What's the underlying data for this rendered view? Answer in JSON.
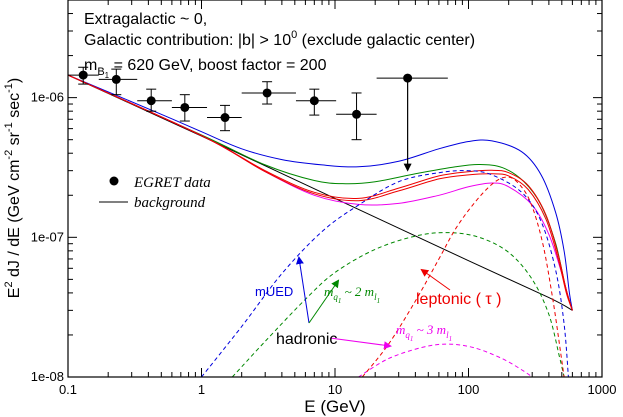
{
  "chart_data": {
    "type": "line",
    "x_scale": "log",
    "y_scale": "log",
    "xlim": [
      0.1,
      1000
    ],
    "ylim": [
      1e-08,
      5e-06
    ],
    "xlabel": "E (GeV)",
    "ylabel_parts": {
      "main": "E",
      "sup": "2",
      "rest": " dJ / dE (GeV cm",
      "sup2": "-2",
      "sr": " sr",
      "sup3": "-1",
      "sec": " sec",
      "sup4": "-1",
      "close": ")"
    },
    "x_ticks": [
      0.1,
      1,
      10,
      100,
      1000
    ],
    "x_tick_labels": [
      "0.1",
      "1",
      "10",
      "100",
      "1000"
    ],
    "y_ticks": [
      1e-08,
      1e-07,
      1e-06
    ],
    "y_tick_labels": [
      "1e-08",
      "1e-07",
      "1e-06"
    ],
    "title_lines": {
      "line1": "Extragalactic ~ 0,",
      "line2_pre": "Galactic contribution: |b| > 10",
      "line2_sup": "0",
      "line2_post": " (exclude galactic center)",
      "line3_m": "m",
      "line3_sub": "B",
      "line3_subsub": "1",
      "line3_post": " = 620 GeV, boost factor = 200"
    },
    "legend": {
      "data_label": "EGRET data",
      "line_label": "background",
      "position": "left"
    },
    "egret_data": [
      {
        "x": 0.13,
        "y": 1.45e-06,
        "xlo": 0.1,
        "xhi": 0.17,
        "ylo": 1.25e-06,
        "yhi": 1.65e-06
      },
      {
        "x": 0.23,
        "y": 1.35e-06,
        "xlo": 0.17,
        "xhi": 0.33,
        "ylo": 1.05e-06,
        "yhi": 1.6e-06
      },
      {
        "x": 0.42,
        "y": 9.5e-07,
        "xlo": 0.33,
        "xhi": 0.6,
        "ylo": 8e-07,
        "yhi": 1.15e-06
      },
      {
        "x": 0.75,
        "y": 8.5e-07,
        "xlo": 0.6,
        "xhi": 1.1,
        "ylo": 6.8e-07,
        "yhi": 1.05e-06
      },
      {
        "x": 1.5,
        "y": 7.2e-07,
        "xlo": 1.1,
        "xhi": 2.0,
        "ylo": 5.8e-07,
        "yhi": 8.8e-07
      },
      {
        "x": 3.1,
        "y": 1.08e-06,
        "xlo": 2.0,
        "xhi": 5.1,
        "ylo": 9e-07,
        "yhi": 1.3e-06
      },
      {
        "x": 7.0,
        "y": 9.5e-07,
        "xlo": 5.1,
        "xhi": 10.2,
        "ylo": 7.5e-07,
        "yhi": 1.15e-06
      },
      {
        "x": 14.5,
        "y": 7.6e-07,
        "xlo": 10.2,
        "xhi": 20.5,
        "ylo": 5e-07,
        "yhi": 1.08e-06
      },
      {
        "x": 35,
        "y": 1.38e-06,
        "xlo": 20.5,
        "xhi": 70,
        "ylo": 3.05e-07,
        "yhi": 1.38e-06,
        "upper_limit": true
      }
    ],
    "series": [
      {
        "name": "background",
        "color": "#000000",
        "dash": "solid",
        "points": [
          [
            0.1,
            1.45e-06
          ],
          [
            1,
            5.3e-07
          ],
          [
            10,
            1.9e-07
          ],
          [
            100,
            6.8e-08
          ],
          [
            400,
            3.7e-08
          ],
          [
            600,
            3e-08
          ]
        ]
      },
      {
        "name": "mUED total",
        "color": "#0000dd",
        "dash": "solid",
        "points": [
          [
            0.1,
            1.45e-06
          ],
          [
            0.5,
            7.6e-07
          ],
          [
            1,
            5.7e-07
          ],
          [
            2,
            4.3e-07
          ],
          [
            4,
            3.6e-07
          ],
          [
            8,
            3.3e-07
          ],
          [
            15,
            3.2e-07
          ],
          [
            30,
            3.5e-07
          ],
          [
            60,
            4.3e-07
          ],
          [
            100,
            4.85e-07
          ],
          [
            150,
            4.9e-07
          ],
          [
            250,
            4.1e-07
          ],
          [
            350,
            2.8e-07
          ],
          [
            450,
            1.5e-07
          ],
          [
            520,
            8e-08
          ],
          [
            570,
            4e-08
          ],
          [
            600,
            3e-08
          ]
        ]
      },
      {
        "name": "hadronic total (mq ~ 2 ml)",
        "color": "#008800",
        "dash": "solid",
        "points": [
          [
            0.1,
            1.45e-06
          ],
          [
            1,
            5.4e-07
          ],
          [
            3,
            3.3e-07
          ],
          [
            7,
            2.55e-07
          ],
          [
            12,
            2.42e-07
          ],
          [
            20,
            2.5e-07
          ],
          [
            40,
            2.85e-07
          ],
          [
            80,
            3.2e-07
          ],
          [
            120,
            3.32e-07
          ],
          [
            180,
            3.15e-07
          ],
          [
            260,
            2.5e-07
          ],
          [
            350,
            1.7e-07
          ],
          [
            450,
            9e-08
          ],
          [
            530,
            4.5e-08
          ],
          [
            600,
            3e-08
          ]
        ]
      },
      {
        "name": "hadronic total (mq ~ 3 ml)",
        "color": "#ee00ee",
        "dash": "solid",
        "points": [
          [
            0.1,
            1.45e-06
          ],
          [
            1,
            5.35e-07
          ],
          [
            3,
            2.95e-07
          ],
          [
            7,
            2e-07
          ],
          [
            15,
            1.72e-07
          ],
          [
            30,
            1.75e-07
          ],
          [
            60,
            2e-07
          ],
          [
            100,
            2.3e-07
          ],
          [
            150,
            2.45e-07
          ],
          [
            200,
            2.3e-07
          ],
          [
            300,
            1.7e-07
          ],
          [
            400,
            1.05e-07
          ],
          [
            500,
            5.5e-08
          ],
          [
            570,
            3.5e-08
          ],
          [
            600,
            3e-08
          ]
        ]
      },
      {
        "name": "leptonic total 1",
        "color": "#ee0000",
        "dash": "solid",
        "points": [
          [
            0.1,
            1.45e-06
          ],
          [
            1,
            5.35e-07
          ],
          [
            3,
            3e-07
          ],
          [
            7,
            2.1e-07
          ],
          [
            15,
            1.9e-07
          ],
          [
            30,
            2.25e-07
          ],
          [
            60,
            2.75e-07
          ],
          [
            100,
            2.95e-07
          ],
          [
            150,
            3.02e-07
          ],
          [
            200,
            2.9e-07
          ],
          [
            280,
            2.35e-07
          ],
          [
            380,
            1.45e-07
          ],
          [
            470,
            7.5e-08
          ],
          [
            540,
            4.2e-08
          ],
          [
            600,
            3e-08
          ]
        ]
      },
      {
        "name": "leptonic total 2",
        "color": "#ee0000",
        "dash": "solid",
        "points": [
          [
            0.1,
            1.45e-06
          ],
          [
            1,
            5.35e-07
          ],
          [
            3,
            2.95e-07
          ],
          [
            7,
            2.05e-07
          ],
          [
            15,
            1.83e-07
          ],
          [
            30,
            2.15e-07
          ],
          [
            60,
            2.62e-07
          ],
          [
            100,
            2.8e-07
          ],
          [
            150,
            2.85e-07
          ],
          [
            200,
            2.75e-07
          ],
          [
            280,
            2.2e-07
          ],
          [
            380,
            1.35e-07
          ],
          [
            470,
            7e-08
          ],
          [
            540,
            4e-08
          ],
          [
            600,
            3e-08
          ]
        ]
      },
      {
        "name": "mUED signal",
        "color": "#0000dd",
        "dash": "dashed",
        "points": [
          [
            1,
            1e-08
          ],
          [
            2,
            2.3e-08
          ],
          [
            4,
            5.5e-08
          ],
          [
            8,
            1.1e-07
          ],
          [
            15,
            1.7e-07
          ],
          [
            30,
            2.5e-07
          ],
          [
            60,
            2.9e-07
          ],
          [
            100,
            3e-07
          ],
          [
            150,
            2.8e-07
          ],
          [
            250,
            2.1e-07
          ],
          [
            350,
            1.3e-07
          ],
          [
            450,
            5.8e-08
          ],
          [
            520,
            2.4e-08
          ],
          [
            560,
            1e-08
          ]
        ]
      },
      {
        "name": "hadronic signal (mq ~ 2 ml)",
        "color": "#008800",
        "dash": "dashed",
        "points": [
          [
            1.7,
            1e-08
          ],
          [
            3,
            1.8e-08
          ],
          [
            6,
            3.6e-08
          ],
          [
            10,
            5.6e-08
          ],
          [
            20,
            8.2e-08
          ],
          [
            40,
            1.02e-07
          ],
          [
            70,
            1.08e-07
          ],
          [
            120,
            1e-07
          ],
          [
            200,
            7.8e-08
          ],
          [
            300,
            5e-08
          ],
          [
            400,
            2.8e-08
          ],
          [
            480,
            1.4e-08
          ],
          [
            520,
            1e-08
          ]
        ]
      },
      {
        "name": "hadronic signal (mq ~ 3 ml)",
        "color": "#ee00ee",
        "dash": "dashed",
        "points": [
          [
            15,
            1e-08
          ],
          [
            25,
            1.35e-08
          ],
          [
            45,
            1.63e-08
          ],
          [
            70,
            1.72e-08
          ],
          [
            110,
            1.62e-08
          ],
          [
            180,
            1.35e-08
          ],
          [
            260,
            1.1e-08
          ],
          [
            300,
            1e-08
          ]
        ]
      },
      {
        "name": "leptonic signal",
        "color": "#ee0000",
        "dash": "dashed",
        "points": [
          [
            16,
            1e-08
          ],
          [
            25,
            1.7e-08
          ],
          [
            40,
            3.5e-08
          ],
          [
            60,
            7e-08
          ],
          [
            80,
            1.15e-07
          ],
          [
            110,
            1.75e-07
          ],
          [
            150,
            2.4e-07
          ],
          [
            190,
            2.7e-07
          ],
          [
            230,
            2.5e-07
          ],
          [
            290,
            1.8e-07
          ],
          [
            360,
            9e-08
          ],
          [
            430,
            3.5e-08
          ],
          [
            490,
            1.5e-08
          ],
          [
            520,
            1e-08
          ]
        ]
      }
    ],
    "annotations": {
      "mued": {
        "label": "mUED",
        "color": "#0000dd"
      },
      "hadronic": {
        "label": "hadronic",
        "color": "#000000"
      },
      "leptonic": {
        "label": "leptonic ( τ )",
        "color": "#ee0000"
      },
      "mq2": {
        "m": "m",
        "sub": "q",
        "subsub": "1",
        "mid": " ~ 2 m",
        "sub2": "l",
        "subsub2": "1",
        "color": "#008800"
      },
      "mq3": {
        "m": "m",
        "sub": "q",
        "subsub": "1",
        "mid": " ~ 3 m",
        "sub2": "l",
        "subsub2": "1",
        "color": "#ee00ee"
      }
    }
  }
}
